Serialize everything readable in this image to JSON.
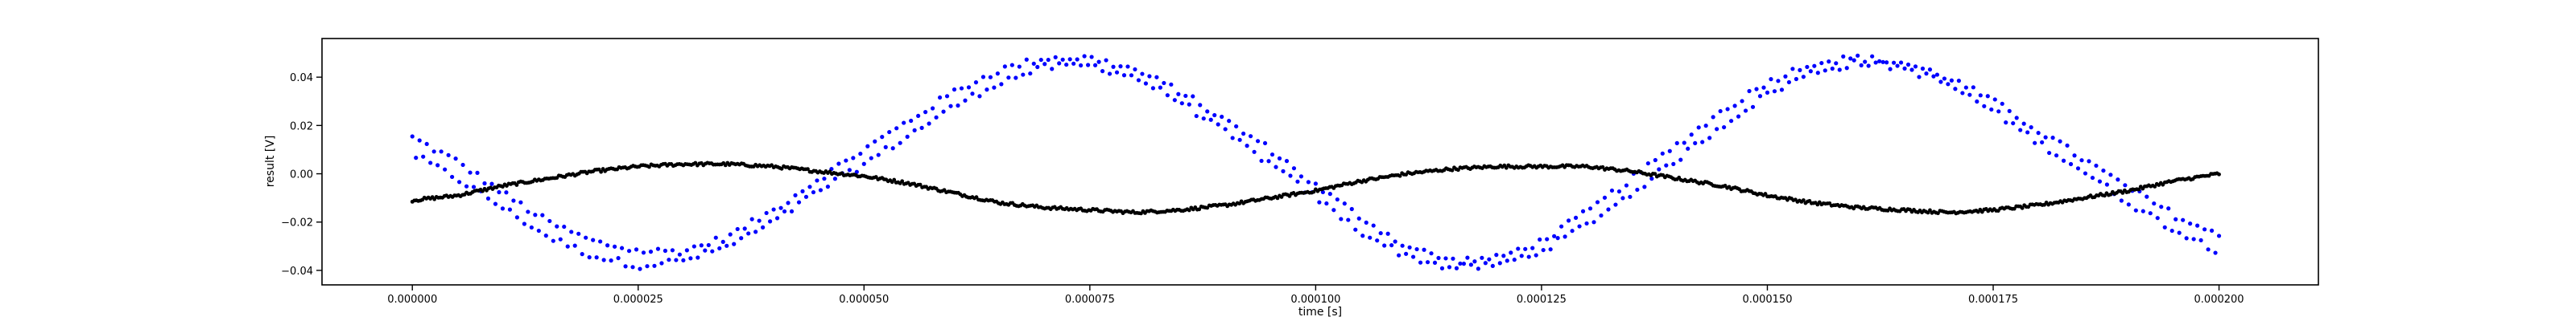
{
  "chart_data": {
    "type": "scatter",
    "title": "",
    "xlabel": "time [s]",
    "ylabel": "result [V]",
    "xlim": [
      -1e-05,
      0.000211
    ],
    "ylim": [
      -0.046,
      0.056
    ],
    "xticks": [
      0,
      2.5e-05,
      5e-05,
      7.5e-05,
      0.0001,
      0.000125,
      0.00015,
      0.000175,
      0.0002
    ],
    "xtick_labels": [
      "0.000000",
      "0.000025",
      "0.000050",
      "0.000075",
      "0.000100",
      "0.000125",
      "0.000150",
      "0.000175",
      "0.000200"
    ],
    "yticks": [
      -0.04,
      -0.02,
      0.0,
      0.02,
      0.04
    ],
    "ytick_labels": [
      "−0.04",
      "−0.02",
      "0.00",
      "0.02",
      "0.04"
    ],
    "grid": false,
    "legend": "none",
    "colors": {
      "blue_series": "#0000ff",
      "black_series": "#000000",
      "axes": "#000000"
    },
    "series": [
      {
        "marker": "dot",
        "color": "#0000ff",
        "x": [
          0,
          5e-06,
          1e-05,
          1.5e-05,
          2e-05,
          2.5e-05,
          3e-05,
          3.5e-05,
          4e-05,
          4.5e-05,
          5e-05,
          5.5e-05,
          6e-05,
          6.5e-05,
          7e-05,
          7.5e-05,
          8e-05,
          8.5e-05,
          9e-05,
          9.5e-05,
          0.0001,
          0.000105,
          0.00011,
          0.000115,
          0.00012,
          0.000125,
          0.00013,
          0.000135,
          0.00014,
          0.000145,
          0.00015,
          0.000155,
          0.00016,
          0.000165,
          0.00017,
          0.000175,
          0.00018,
          0.000185,
          0.00019,
          0.000195,
          0.0002
        ],
        "y_upper": [
          0.015,
          0.005,
          -0.008,
          -0.02,
          -0.028,
          -0.032,
          -0.032,
          -0.026,
          -0.015,
          -0.002,
          0.01,
          0.022,
          0.034,
          0.043,
          0.048,
          0.048,
          0.043,
          0.034,
          0.022,
          0.01,
          -0.005,
          -0.018,
          -0.03,
          -0.036,
          -0.035,
          -0.028,
          -0.016,
          -0.002,
          0.012,
          0.026,
          0.038,
          0.046,
          0.048,
          0.046,
          0.04,
          0.03,
          0.018,
          0.006,
          -0.006,
          -0.017,
          -0.026
        ],
        "y_lower": [
          0.008,
          -0.002,
          -0.014,
          -0.026,
          -0.034,
          -0.038,
          -0.036,
          -0.03,
          -0.02,
          -0.007,
          0.004,
          0.016,
          0.028,
          0.038,
          0.044,
          0.045,
          0.04,
          0.03,
          0.017,
          0.004,
          -0.01,
          -0.024,
          -0.034,
          -0.039,
          -0.038,
          -0.032,
          -0.021,
          -0.008,
          0.006,
          0.02,
          0.033,
          0.042,
          0.046,
          0.044,
          0.037,
          0.026,
          0.013,
          0.001,
          -0.012,
          -0.023,
          -0.032
        ]
      },
      {
        "marker": "dot",
        "color": "#000000",
        "x": [
          0,
          5e-06,
          1e-05,
          1.5e-05,
          2e-05,
          2.5e-05,
          3e-05,
          3.5e-05,
          4e-05,
          4.5e-05,
          5e-05,
          5.5e-05,
          6e-05,
          6.5e-05,
          7e-05,
          7.5e-05,
          8e-05,
          8.5e-05,
          9e-05,
          9.5e-05,
          0.0001,
          0.000105,
          0.00011,
          0.000115,
          0.00012,
          0.000125,
          0.00013,
          0.000135,
          0.00014,
          0.000145,
          0.00015,
          0.000155,
          0.00016,
          0.000165,
          0.00017,
          0.000175,
          0.00018,
          0.000185,
          0.00019,
          0.000195,
          0.0002
        ],
        "y": [
          -0.011,
          -0.009,
          -0.005,
          -0.002,
          0.001,
          0.003,
          0.004,
          0.004,
          0.003,
          0.001,
          -0.001,
          -0.004,
          -0.008,
          -0.012,
          -0.014,
          -0.015,
          -0.016,
          -0.015,
          -0.013,
          -0.01,
          -0.007,
          -0.003,
          0.0,
          0.002,
          0.003,
          0.003,
          0.003,
          0.001,
          -0.002,
          -0.005,
          -0.009,
          -0.012,
          -0.014,
          -0.015,
          -0.016,
          -0.015,
          -0.013,
          -0.01,
          -0.007,
          -0.003,
          0.0
        ]
      }
    ]
  }
}
